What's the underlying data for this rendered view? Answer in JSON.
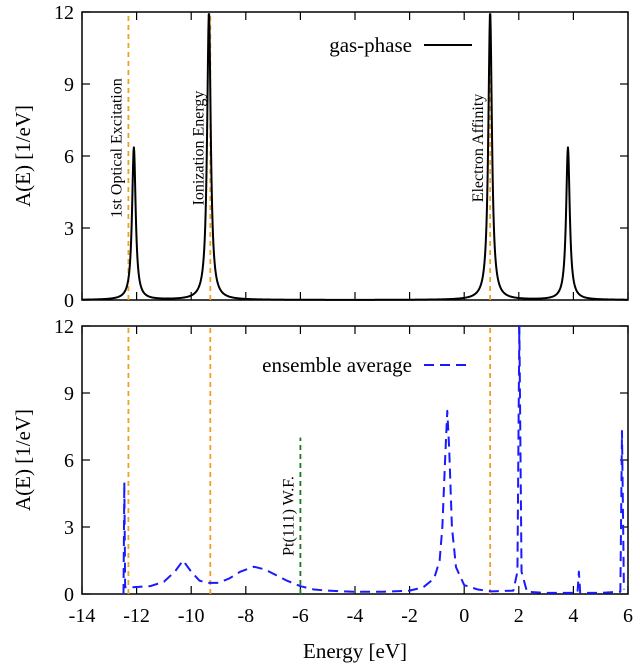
{
  "chart_data": [
    {
      "type": "line",
      "ylabel": "A(E) [1/eV]",
      "xlim": [
        -14,
        6
      ],
      "ylim": [
        0,
        12
      ],
      "yticks": [
        0,
        3,
        6,
        9,
        12
      ],
      "legend_position": "top-right",
      "series": [
        {
          "name": "gas-phase",
          "color": "#000000",
          "style": "solid",
          "peaks": [
            {
              "center": -12.1,
              "height": 6.35,
              "width": 0.08
            },
            {
              "center": -9.35,
              "height": 12.0,
              "width": 0.08
            },
            {
              "center": 0.95,
              "height": 12.0,
              "width": 0.08
            },
            {
              "center": 3.8,
              "height": 6.35,
              "width": 0.08
            }
          ]
        }
      ],
      "vlines": [
        {
          "x": -12.3,
          "label": "1st Optical Excitation",
          "color": "#f0a020"
        },
        {
          "x": -9.3,
          "label": "Ionization Energy",
          "color": "#f0a020"
        },
        {
          "x": 0.95,
          "label": "Electron Affinity",
          "color": "#f0a020"
        }
      ]
    },
    {
      "type": "line",
      "xlabel": "Energy [eV]",
      "ylabel": "A(E) [1/eV]",
      "xlim": [
        -14,
        6
      ],
      "ylim": [
        0,
        12
      ],
      "xticks": [
        -14,
        -12,
        -10,
        -8,
        -6,
        -4,
        -2,
        0,
        2,
        4,
        6
      ],
      "yticks": [
        0,
        3,
        6,
        9,
        12
      ],
      "legend_position": "top-left",
      "series": [
        {
          "name": "ensemble average",
          "color": "#1a1aff",
          "style": "dashed",
          "points": [
            [
              -12.48,
              0.0
            ],
            [
              -12.45,
              5.0
            ],
            [
              -12.42,
              0.3
            ],
            [
              -12.2,
              0.3
            ],
            [
              -11.5,
              0.35
            ],
            [
              -11.0,
              0.55
            ],
            [
              -10.6,
              1.0
            ],
            [
              -10.3,
              1.5
            ],
            [
              -10.0,
              1.0
            ],
            [
              -9.7,
              0.6
            ],
            [
              -9.4,
              0.5
            ],
            [
              -9.0,
              0.5
            ],
            [
              -8.6,
              0.7
            ],
            [
              -8.2,
              1.0
            ],
            [
              -7.7,
              1.22
            ],
            [
              -7.3,
              1.1
            ],
            [
              -6.9,
              0.85
            ],
            [
              -6.5,
              0.6
            ],
            [
              -6.0,
              0.35
            ],
            [
              -5.5,
              0.2
            ],
            [
              -5.0,
              0.15
            ],
            [
              -4.0,
              0.1
            ],
            [
              -3.0,
              0.1
            ],
            [
              -2.0,
              0.15
            ],
            [
              -1.5,
              0.3
            ],
            [
              -1.1,
              0.7
            ],
            [
              -0.9,
              1.5
            ],
            [
              -0.8,
              3.0
            ],
            [
              -0.7,
              6.0
            ],
            [
              -0.62,
              8.2
            ],
            [
              -0.55,
              6.5
            ],
            [
              -0.45,
              3.0
            ],
            [
              -0.3,
              1.2
            ],
            [
              0.0,
              0.4
            ],
            [
              0.5,
              0.2
            ],
            [
              1.0,
              0.12
            ],
            [
              1.8,
              0.15
            ],
            [
              1.95,
              1.0
            ],
            [
              2.02,
              12.0
            ],
            [
              2.1,
              1.0
            ],
            [
              2.3,
              0.1
            ],
            [
              3.0,
              0.05
            ],
            [
              4.15,
              0.05
            ],
            [
              4.2,
              1.0
            ],
            [
              4.25,
              0.05
            ],
            [
              5.0,
              0.05
            ],
            [
              5.72,
              0.1
            ],
            [
              5.78,
              7.3
            ],
            [
              5.85,
              0.2
            ]
          ]
        }
      ],
      "vlines": [
        {
          "x": -12.3,
          "label": "",
          "color": "#f0a020"
        },
        {
          "x": -9.3,
          "label": "",
          "color": "#f0a020"
        },
        {
          "x": 0.95,
          "label": "",
          "color": "#f0a020"
        },
        {
          "x": -6.0,
          "label": "Pt(111) W.F.",
          "color": "#1a7a1a",
          "ymax": 7.0
        }
      ]
    }
  ]
}
